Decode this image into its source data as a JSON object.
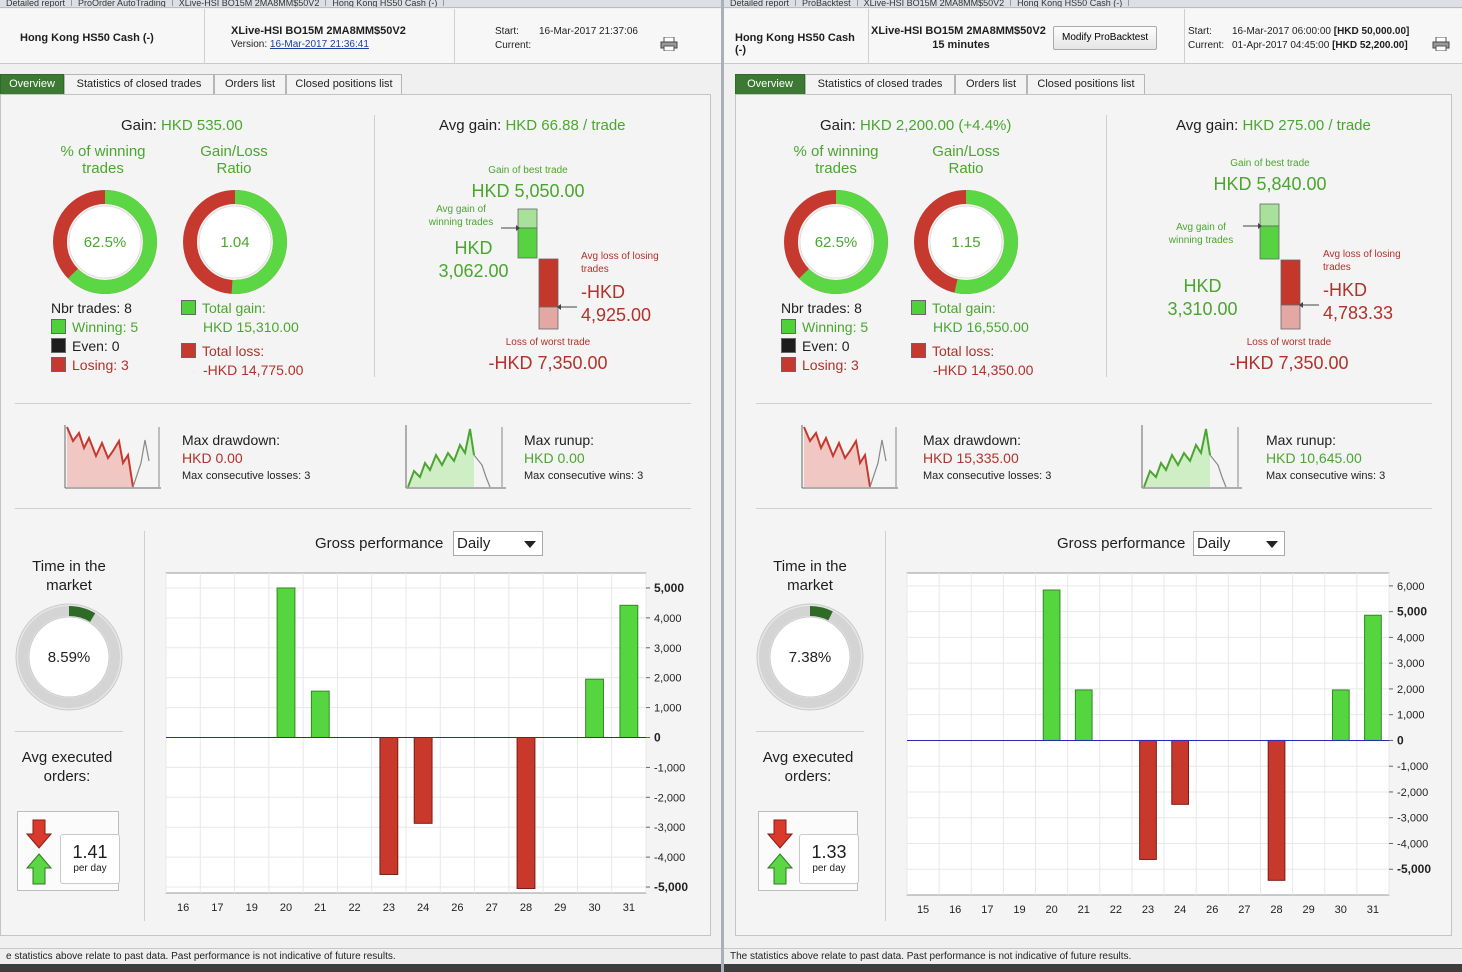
{
  "panels": [
    {
      "id": "left",
      "top_tabs": [
        "Detailed report",
        "ProOrder AutoTrading",
        "XLive-HSI BO15M 2MA8MM$50V2",
        "Hong Kong HS50 Cash (-)"
      ],
      "instrument": "Hong Kong HS50 Cash (-)",
      "strategy_name": "XLive-HSI BO15M 2MA8MM$50V2",
      "version_label": "Version:",
      "version_date": "16-Mar-2017 21:36:41",
      "start_label": "Start:",
      "start_value": "16-Mar-2017 21:37:06",
      "current_label": "Current:",
      "current_value": "",
      "tabs": [
        "Overview",
        "Statistics of closed trades",
        "Orders list",
        "Closed positions list"
      ],
      "gain_label": "Gain:",
      "gain_value": "HKD 535.00",
      "winning_pct_title": "% of winning trades",
      "winning_pct": "62.5%",
      "winning_pct_num": 62.5,
      "gl_ratio_title": "Gain/Loss Ratio",
      "gl_ratio": "1.04",
      "gl_ratio_num": 1.04,
      "nbr_trades": "Nbr trades: 8",
      "winning": "Winning: 5",
      "even": "Even: 0",
      "losing": "Losing: 3",
      "total_gain_label": "Total gain:",
      "total_gain": "HKD 15,310.00",
      "total_loss_label": "Total loss:",
      "total_loss": "-HKD 14,775.00",
      "avg_gain_label": "Avg gain:",
      "avg_gain_value": "HKD 66.88 / trade",
      "best_trade_label": "Gain of best trade",
      "best_trade": "HKD 5,050.00",
      "avg_win_label": "Avg gain of winning trades",
      "avg_win_cur": "HKD",
      "avg_win_val": "3,062.00",
      "avg_loss_label": "Avg loss of losing trades",
      "avg_loss_cur": "-HKD",
      "avg_loss_val": "4,925.00",
      "worst_trade_label": "Loss of worst trade",
      "worst_trade": "-HKD 7,350.00",
      "max_dd_label": "Max drawdown:",
      "max_dd": "HKD 0.00",
      "max_cons_losses": "Max consecutive losses: 3",
      "max_runup_label": "Max runup:",
      "max_runup": "HKD 0.00",
      "max_cons_wins": "Max consecutive wins: 3",
      "time_in_market_label": "Time in the market",
      "time_in_market": "8.59%",
      "time_in_market_num": 8.59,
      "avg_orders_label": "Avg executed orders:",
      "avg_orders": "1.41",
      "per_day": "per day",
      "gross_perf_label": "Gross performance",
      "period_select": "Daily",
      "footer": "e statistics above relate to past data. Past performance is not indicative of future results."
    },
    {
      "id": "right",
      "top_tabs": [
        "Detailed report",
        "ProBacktest",
        "XLive-HSI BO15M 2MA8MM$50V2",
        "Hong Kong HS50 Cash (-)"
      ],
      "instrument": "Hong Kong HS50 Cash (-)",
      "strategy_name": "XLive-HSI BO15M 2MA8MM$50V2",
      "timeframe": "15 minutes",
      "modify_button": "Modify ProBacktest",
      "start_label": "Start:",
      "start_value": "16-Mar-2017 06:00:00",
      "start_capital": "[HKD 50,000.00]",
      "current_label": "Current:",
      "current_value": "01-Apr-2017 04:45:00",
      "current_capital": "[HKD 52,200.00]",
      "tabs": [
        "Overview",
        "Statistics of closed trades",
        "Orders list",
        "Closed positions list"
      ],
      "gain_label": "Gain:",
      "gain_value": "HKD 2,200.00 (+4.4%)",
      "winning_pct_title": "% of winning trades",
      "winning_pct": "62.5%",
      "winning_pct_num": 62.5,
      "gl_ratio_title": "Gain/Loss Ratio",
      "gl_ratio": "1.15",
      "gl_ratio_num": 1.15,
      "nbr_trades": "Nbr trades: 8",
      "winning": "Winning: 5",
      "even": "Even: 0",
      "losing": "Losing: 3",
      "total_gain_label": "Total gain:",
      "total_gain": "HKD 16,550.00",
      "total_loss_label": "Total loss:",
      "total_loss": "-HKD 14,350.00",
      "avg_gain_label": "Avg gain:",
      "avg_gain_value": "HKD 275.00 / trade",
      "best_trade_label": "Gain of best trade",
      "best_trade": "HKD 5,840.00",
      "avg_win_label": "Avg gain of winning trades",
      "avg_win_cur": "HKD",
      "avg_win_val": "3,310.00",
      "avg_loss_label": "Avg loss of losing trades",
      "avg_loss_cur": "-HKD",
      "avg_loss_val": "4,783.33",
      "worst_trade_label": "Loss of worst trade",
      "worst_trade": "-HKD 7,350.00",
      "max_dd_label": "Max drawdown:",
      "max_dd": "HKD 15,335.00",
      "max_cons_losses": "Max consecutive losses: 3",
      "max_runup_label": "Max runup:",
      "max_runup": "HKD 10,645.00",
      "max_cons_wins": "Max consecutive wins: 3",
      "time_in_market_label": "Time in the market",
      "time_in_market": "7.38%",
      "time_in_market_num": 7.38,
      "avg_orders_label": "Avg executed orders:",
      "avg_orders": "1.33",
      "per_day": "per day",
      "gross_perf_label": "Gross performance",
      "period_select": "Daily",
      "footer": "The statistics above relate to past data. Past performance is not indicative of future results."
    }
  ],
  "colors": {
    "accent_green": "#4ba630",
    "loss_red": "#b2322b",
    "tab_active": "#3c7a33",
    "bar_green": "#55d63e",
    "bar_red": "#c8392c"
  },
  "chart_data": [
    {
      "type": "bar",
      "title": "Gross performance",
      "categories": [
        "16",
        "17",
        "19",
        "20",
        "21",
        "22",
        "23",
        "24",
        "26",
        "27",
        "28",
        "29",
        "30",
        "31"
      ],
      "values": [
        0,
        0,
        0,
        5000,
        1550,
        0,
        -4580,
        -2870,
        0,
        0,
        -5050,
        0,
        1950,
        4420
      ],
      "ylim": [
        -5200,
        5500
      ],
      "yticks": [
        -5000,
        -4000,
        -3000,
        -2000,
        -1000,
        0,
        1000,
        2000,
        3000,
        4000,
        5000
      ],
      "ytick_labels": [
        "-5,000",
        "-4,000",
        "-3,000",
        "-2,000",
        "-1,000",
        "0",
        "1,000",
        "2,000",
        "3,000",
        "4,000",
        "5,000"
      ],
      "bold_ticks": [
        -5000,
        0,
        5000
      ]
    },
    {
      "type": "bar",
      "title": "Gross performance",
      "categories": [
        "15",
        "16",
        "17",
        "19",
        "20",
        "21",
        "22",
        "23",
        "24",
        "26",
        "27",
        "28",
        "29",
        "30",
        "31"
      ],
      "values": [
        0,
        0,
        0,
        0,
        5840,
        1960,
        0,
        -4620,
        -2480,
        0,
        0,
        -5430,
        0,
        1960,
        4860
      ],
      "ylim": [
        -6000,
        6500
      ],
      "yticks": [
        -5000,
        -4000,
        -3000,
        -2000,
        -1000,
        0,
        1000,
        2000,
        3000,
        4000,
        5000,
        6000
      ],
      "ytick_labels": [
        "-5,000",
        "-4,000",
        "-3,000",
        "-2,000",
        "-1,000",
        "0",
        "1,000",
        "2,000",
        "3,000",
        "4,000",
        "5,000",
        "6,000"
      ],
      "bold_ticks": [
        -5000,
        0,
        5000
      ]
    }
  ]
}
